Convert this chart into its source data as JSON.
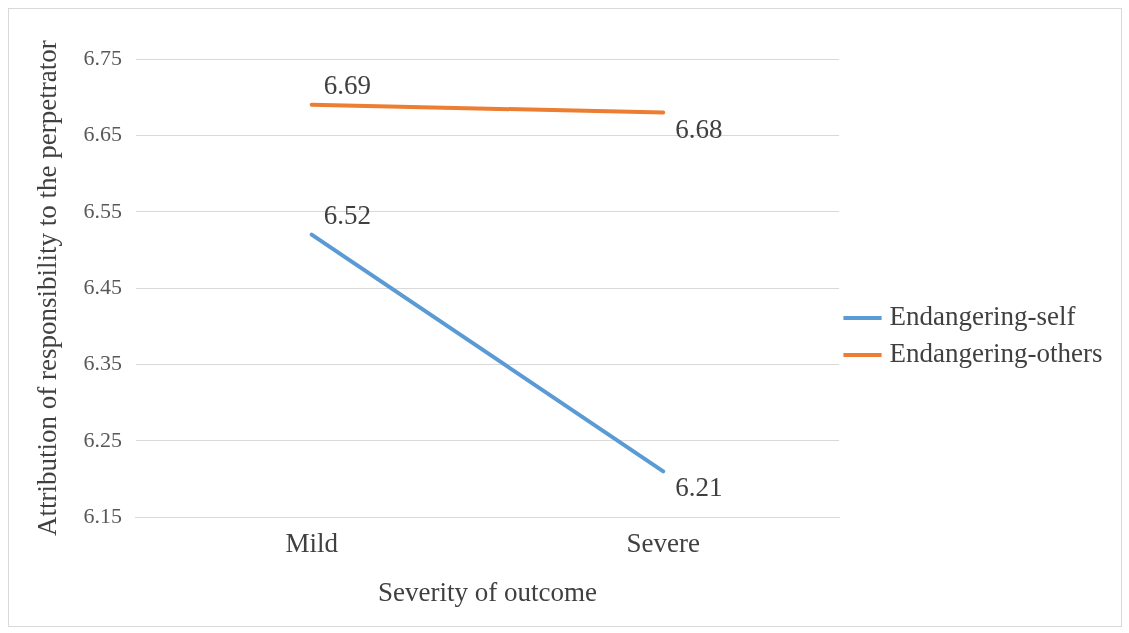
{
  "chart_data": {
    "type": "line",
    "xlabel": "Severity of outcome",
    "ylabel": "Attribution of responsibility to the perpetrator",
    "categories": [
      "Mild",
      "Severe"
    ],
    "series": [
      {
        "name": "Endangering-self",
        "color": "#5b9bd5",
        "values": [
          6.52,
          6.21
        ]
      },
      {
        "name": "Endangering-others",
        "color": "#ed7d31",
        "values": [
          6.69,
          6.68
        ]
      }
    ],
    "ylim": [
      6.15,
      6.75
    ],
    "yticks": [
      6.15,
      6.25,
      6.35,
      6.45,
      6.55,
      6.65,
      6.75
    ],
    "grid": "y",
    "legend": "right",
    "data_labels": true,
    "marker": "none",
    "line_style": "solid"
  }
}
